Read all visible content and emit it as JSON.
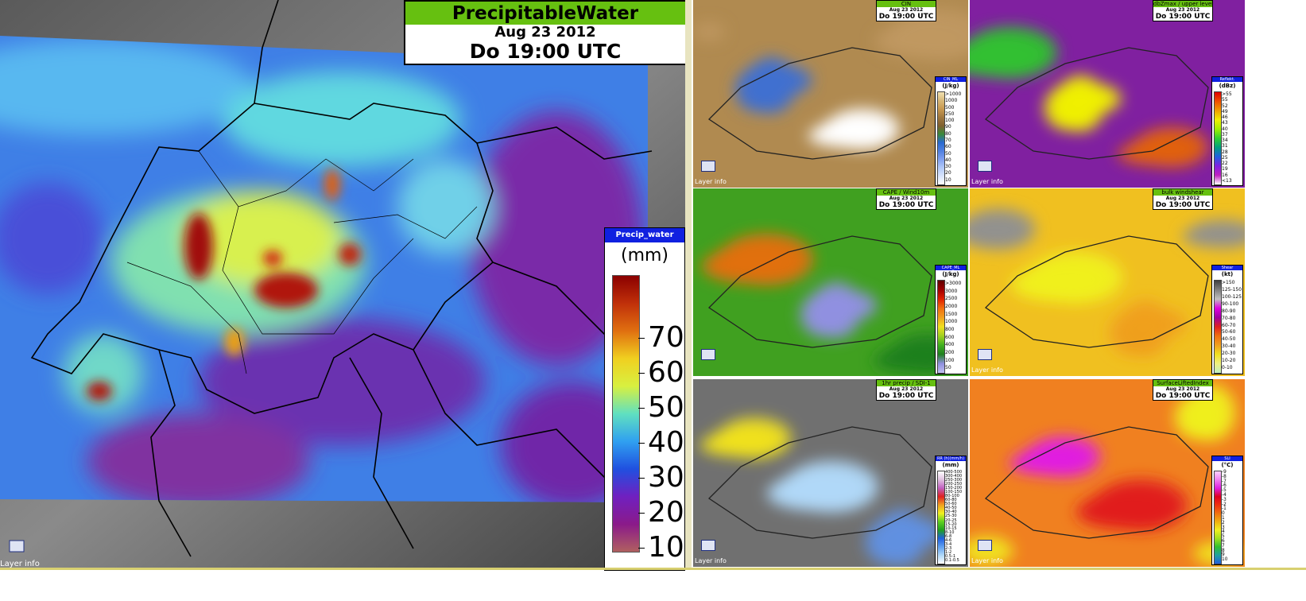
{
  "main": {
    "title": "PrecipitableWater",
    "date": "Aug 23 2012",
    "time": "Do 19:00 UTC",
    "layer_info": "Layer info",
    "legend": {
      "title": "Precip_water",
      "unit": "(mm)",
      "lim": [
        9,
        88
      ],
      "ticks": [
        70,
        60,
        50,
        40,
        30,
        20,
        10
      ],
      "colors": [
        "#8b0000",
        "#c0300a",
        "#e07010",
        "#f0d020",
        "#d8f040",
        "#60e0c0",
        "#30a0f0",
        "#2050e0",
        "#7020c0",
        "#8a1a8a",
        "#b06060"
      ]
    }
  },
  "panels": [
    {
      "title": "CIN",
      "date": "Aug 23 2012",
      "time": "Do 19:00 UTC",
      "legend_title": "CIN_ML",
      "unit": "(J/kg)",
      "layer_info": "Layer info",
      "labels": [
        ">1000",
        "1000",
        "500",
        "250",
        "100",
        "90",
        "80",
        "70",
        "60",
        "50",
        "40",
        "30",
        "20",
        "10"
      ],
      "colors": [
        "#f0e0b0",
        "#d8b878",
        "#c89850",
        "#a07840",
        "#806030",
        "#3a8a3a",
        "#2a6ad0",
        "#5080e0",
        "#80a0f0",
        "#b0c8f8",
        "#d8e4fc",
        "#ffffff"
      ]
    },
    {
      "title": "dbZmax / upper level winds",
      "date": "Aug 23 2012",
      "time": "Do 19:00 UTC",
      "legend_title": "Reflekt.",
      "unit": "(dBz)",
      "layer_info": "Layer info",
      "labels": [
        ">55",
        "55",
        "52",
        "49",
        "46",
        "43",
        "40",
        "37",
        "34",
        "31",
        "28",
        "25",
        "22",
        "19",
        "16",
        "<13"
      ],
      "colors": [
        "#e00000",
        "#f05000",
        "#f0a000",
        "#f0f000",
        "#a0f000",
        "#30d030",
        "#00a080",
        "#2060e0",
        "#8020e0",
        "#c020c0",
        "#ffffff"
      ]
    },
    {
      "title": "CAPE / Wind10m",
      "date": "Aug 23 2012",
      "time": "Do 19:00 UTC",
      "legend_title": "CAPE_ML",
      "unit": "(J/kg)",
      "layer_info": "",
      "labels": [
        ">3000",
        "3000",
        "2500",
        "2000",
        "1500",
        "1000",
        "800",
        "600",
        "400",
        "200",
        "100",
        "50"
      ],
      "colors": [
        "#600000",
        "#a00000",
        "#e02000",
        "#f07010",
        "#f0a020",
        "#f0e020",
        "#a0d020",
        "#40b020",
        "#208020",
        "#9090e0",
        "#c0c0f0"
      ]
    },
    {
      "title": "bulk windshear",
      "date": "Aug 23 2012",
      "time": "Do 19:00 UTC",
      "legend_title": "Shear",
      "unit": "(kt)",
      "layer_info": "Layer info",
      "labels": [
        ">150",
        "125-150",
        "100-125",
        "90-100",
        "80-90",
        "70-80",
        "60-70",
        "50-60",
        "40-50",
        "30-40",
        "20-30",
        "10-20",
        "0-10"
      ],
      "colors": [
        "#404040",
        "#808080",
        "#c0c0c0",
        "#e000e0",
        "#a000a0",
        "#e02020",
        "#f07010",
        "#f0a020",
        "#f0e020",
        "#f0f080",
        "#c0f0c0"
      ]
    },
    {
      "title": "1hr precip / SDI-1",
      "date": "Aug 23 2012",
      "time": "Do 19:00 UTC",
      "legend_title": "RR (h)(mm/h)",
      "unit": "(mm)",
      "layer_info": "Layer info",
      "labels": [
        "400-500",
        "300-400",
        "250-300",
        "200-250",
        "150-200",
        "100-150",
        "80-100",
        "60-80",
        "50-60",
        "40-50",
        "30-40",
        "25-30",
        "20-25",
        "15-20",
        "10-15",
        "8-10",
        "6-8",
        "4-6",
        "3-4",
        "2-3",
        "1-2",
        "0.5-1",
        "0.1-0.5"
      ],
      "colors": [
        "#ffffff",
        "#e0c0e0",
        "#c060c0",
        "#e02020",
        "#f0a020",
        "#f0f020",
        "#60d020",
        "#20a020",
        "#2060e0",
        "#60a0f0",
        "#b0d8f8",
        "#ffffff"
      ]
    },
    {
      "title": "SurfaceLiftedIndex",
      "date": "Aug 23 2012",
      "time": "Do 19:00 UTC",
      "legend_title": "SLI",
      "unit": "(°C)",
      "layer_info": "Layer info",
      "labels": [
        "-9",
        "-8",
        "-7",
        "-6",
        "-5",
        "-4",
        "-3",
        "-2",
        "-1",
        "0",
        "1",
        "2",
        "3",
        "4",
        "5",
        "6",
        "7",
        "8",
        "9",
        "10"
      ],
      "colors": [
        "#ffd0ff",
        "#f080f0",
        "#e020e0",
        "#e00020",
        "#f03010",
        "#f07010",
        "#f0b010",
        "#f0f020",
        "#a0e020",
        "#30c030",
        "#20a0a0",
        "#2060e0"
      ]
    }
  ]
}
